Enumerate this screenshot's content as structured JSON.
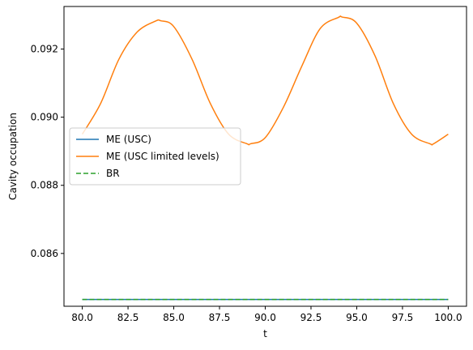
{
  "chart_data": {
    "type": "line",
    "title": "",
    "xlabel": "t",
    "ylabel": "Cavity occupation",
    "xlim": [
      79.0,
      101.0
    ],
    "ylim": [
      0.08445,
      0.09325
    ],
    "xticks": [
      80.0,
      82.5,
      85.0,
      87.5,
      90.0,
      92.5,
      95.0,
      97.5,
      100.0
    ],
    "xtick_labels": [
      "80.0",
      "82.5",
      "85.0",
      "87.5",
      "90.0",
      "92.5",
      "95.0",
      "97.5",
      "100.0"
    ],
    "yticks": [
      0.086,
      0.088,
      0.09,
      0.092
    ],
    "ytick_labels": [
      "0.086",
      "0.088",
      "0.090",
      "0.092"
    ],
    "grid": false,
    "legend_position": "center-left",
    "series": [
      {
        "name": "ME (USC)",
        "color": "#1f77b4",
        "style": "solid",
        "x": [
          80.0,
          100.0
        ],
        "y": [
          0.08465,
          0.08465
        ]
      },
      {
        "name": "ME (USC limited levels)",
        "color": "#ff7f0e",
        "style": "solid",
        "x": [
          80.0,
          81.0,
          82.0,
          83.0,
          84.0,
          84.3,
          85.0,
          86.0,
          87.0,
          88.0,
          89.0,
          89.2,
          90.0,
          91.0,
          92.0,
          93.0,
          94.0,
          94.2,
          95.0,
          96.0,
          97.0,
          98.0,
          99.0,
          99.2,
          100.0
        ],
        "y": [
          0.0895,
          0.0904,
          0.0917,
          0.0925,
          0.09282,
          0.09283,
          0.09266,
          0.0917,
          0.0904,
          0.0895,
          0.08922,
          0.08922,
          0.0894,
          0.0903,
          0.0915,
          0.0926,
          0.09293,
          0.09294,
          0.09276,
          0.0918,
          0.0904,
          0.0895,
          0.08922,
          0.08922,
          0.0895
        ]
      },
      {
        "name": "BR",
        "color": "#2ca02c",
        "style": "dashed",
        "x": [
          80.0,
          100.0
        ],
        "y": [
          0.08465,
          0.08465
        ]
      }
    ]
  }
}
